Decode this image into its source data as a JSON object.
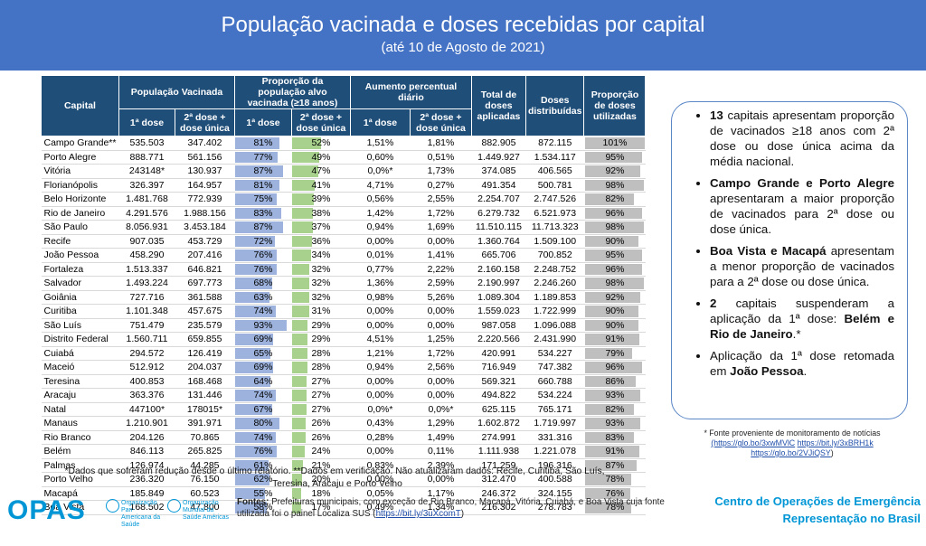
{
  "header": {
    "title": "População vacinada e doses recebidas por capital",
    "subtitle": "(até 10 de Agosto de 2021)"
  },
  "table": {
    "group_headers": {
      "capital": "Capital",
      "pop": "População Vacinada",
      "prop": "Proporção da população alvo vacinada (≥18 anos)",
      "aumento": "Aumento percentual diário",
      "total": "Total de doses aplicadas",
      "dist": "Doses distribuídas",
      "util": "Proporção de doses utilizadas"
    },
    "sub_headers": {
      "d1": "1ª dose",
      "d2": "2ª dose + dose única"
    },
    "rows": [
      {
        "capital": "Campo Grande**",
        "d1": "535.503",
        "d2": "347.402",
        "p1": "81%",
        "p2": "52%",
        "a1": "1,51%",
        "a2": "1,81%",
        "total": "882.905",
        "dist": "872.115",
        "util": "101%",
        "f1": 0.81,
        "f2": 0.52,
        "fu": 1.01
      },
      {
        "capital": "Porto Alegre",
        "d1": "888.771",
        "d2": "561.156",
        "p1": "77%",
        "p2": "49%",
        "a1": "0,60%",
        "a2": "0,51%",
        "total": "1.449.927",
        "dist": "1.534.117",
        "util": "95%",
        "f1": 0.77,
        "f2": 0.49,
        "fu": 0.95
      },
      {
        "capital": "Vitória",
        "d1": "243148*",
        "d2": "130.937",
        "p1": "87%",
        "p2": "47%",
        "a1": "0,0%*",
        "a2": "1,73%",
        "total": "374.085",
        "dist": "406.565",
        "util": "92%",
        "f1": 0.87,
        "f2": 0.47,
        "fu": 0.92
      },
      {
        "capital": "Florianópolis",
        "d1": "326.397",
        "d2": "164.957",
        "p1": "81%",
        "p2": "41%",
        "a1": "4,71%",
        "a2": "0,27%",
        "total": "491.354",
        "dist": "500.781",
        "util": "98%",
        "f1": 0.81,
        "f2": 0.41,
        "fu": 0.98
      },
      {
        "capital": "Belo Horizonte",
        "d1": "1.481.768",
        "d2": "772.939",
        "p1": "75%",
        "p2": "39%",
        "a1": "0,56%",
        "a2": "2,55%",
        "total": "2.254.707",
        "dist": "2.747.526",
        "util": "82%",
        "f1": 0.75,
        "f2": 0.39,
        "fu": 0.82
      },
      {
        "capital": "Rio de Janeiro",
        "d1": "4.291.576",
        "d2": "1.988.156",
        "p1": "83%",
        "p2": "38%",
        "a1": "1,42%",
        "a2": "1,72%",
        "total": "6.279.732",
        "dist": "6.521.973",
        "util": "96%",
        "f1": 0.83,
        "f2": 0.38,
        "fu": 0.96
      },
      {
        "capital": "São Paulo",
        "d1": "8.056.931",
        "d2": "3.453.184",
        "p1": "87%",
        "p2": "37%",
        "a1": "0,94%",
        "a2": "1,69%",
        "total": "11.510.115",
        "dist": "11.713.323",
        "util": "98%",
        "f1": 0.87,
        "f2": 0.37,
        "fu": 0.98
      },
      {
        "capital": "Recife",
        "d1": "907.035",
        "d2": "453.729",
        "p1": "72%",
        "p2": "36%",
        "a1": "0,00%",
        "a2": "0,00%",
        "total": "1.360.764",
        "dist": "1.509.100",
        "util": "90%",
        "f1": 0.72,
        "f2": 0.36,
        "fu": 0.9
      },
      {
        "capital": "João Pessoa",
        "d1": "458.290",
        "d2": "207.416",
        "p1": "76%",
        "p2": "34%",
        "a1": "0,01%",
        "a2": "1,41%",
        "total": "665.706",
        "dist": "700.852",
        "util": "95%",
        "f1": 0.76,
        "f2": 0.34,
        "fu": 0.95
      },
      {
        "capital": "Fortaleza",
        "d1": "1.513.337",
        "d2": "646.821",
        "p1": "76%",
        "p2": "32%",
        "a1": "0,77%",
        "a2": "2,22%",
        "total": "2.160.158",
        "dist": "2.248.752",
        "util": "96%",
        "f1": 0.76,
        "f2": 0.32,
        "fu": 0.96
      },
      {
        "capital": "Salvador",
        "d1": "1.493.224",
        "d2": "697.773",
        "p1": "68%",
        "p2": "32%",
        "a1": "1,36%",
        "a2": "2,59%",
        "total": "2.190.997",
        "dist": "2.246.260",
        "util": "98%",
        "f1": 0.68,
        "f2": 0.32,
        "fu": 0.98
      },
      {
        "capital": "Goiânia",
        "d1": "727.716",
        "d2": "361.588",
        "p1": "63%",
        "p2": "32%",
        "a1": "0,98%",
        "a2": "5,26%",
        "total": "1.089.304",
        "dist": "1.189.853",
        "util": "92%",
        "f1": 0.63,
        "f2": 0.32,
        "fu": 0.92
      },
      {
        "capital": "Curitiba",
        "d1": "1.101.348",
        "d2": "457.675",
        "p1": "74%",
        "p2": "31%",
        "a1": "0,00%",
        "a2": "0,00%",
        "total": "1.559.023",
        "dist": "1.722.999",
        "util": "90%",
        "f1": 0.74,
        "f2": 0.31,
        "fu": 0.9
      },
      {
        "capital": "São Luís",
        "d1": "751.479",
        "d2": "235.579",
        "p1": "93%",
        "p2": "29%",
        "a1": "0,00%",
        "a2": "0,00%",
        "total": "987.058",
        "dist": "1.096.088",
        "util": "90%",
        "f1": 0.93,
        "f2": 0.29,
        "fu": 0.9
      },
      {
        "capital": "Distrito Federal",
        "d1": "1.560.711",
        "d2": "659.855",
        "p1": "69%",
        "p2": "29%",
        "a1": "4,51%",
        "a2": "1,25%",
        "total": "2.220.566",
        "dist": "2.431.990",
        "util": "91%",
        "f1": 0.69,
        "f2": 0.29,
        "fu": 0.91
      },
      {
        "capital": "Cuiabá",
        "d1": "294.572",
        "d2": "126.419",
        "p1": "65%",
        "p2": "28%",
        "a1": "1,21%",
        "a2": "1,72%",
        "total": "420.991",
        "dist": "534.227",
        "util": "79%",
        "f1": 0.65,
        "f2": 0.28,
        "fu": 0.79
      },
      {
        "capital": "Maceió",
        "d1": "512.912",
        "d2": "204.037",
        "p1": "69%",
        "p2": "28%",
        "a1": "0,94%",
        "a2": "2,56%",
        "total": "716.949",
        "dist": "747.382",
        "util": "96%",
        "f1": 0.69,
        "f2": 0.28,
        "fu": 0.96
      },
      {
        "capital": "Teresina",
        "d1": "400.853",
        "d2": "168.468",
        "p1": "64%",
        "p2": "27%",
        "a1": "0,00%",
        "a2": "0,00%",
        "total": "569.321",
        "dist": "660.788",
        "util": "86%",
        "f1": 0.64,
        "f2": 0.27,
        "fu": 0.86
      },
      {
        "capital": "Aracaju",
        "d1": "363.376",
        "d2": "131.446",
        "p1": "74%",
        "p2": "27%",
        "a1": "0,00%",
        "a2": "0,00%",
        "total": "494.822",
        "dist": "534.224",
        "util": "93%",
        "f1": 0.74,
        "f2": 0.27,
        "fu": 0.93
      },
      {
        "capital": "Natal",
        "d1": "447100*",
        "d2": "178015*",
        "p1": "67%",
        "p2": "27%",
        "a1": "0,0%*",
        "a2": "0,0%*",
        "total": "625.115",
        "dist": "765.171",
        "util": "82%",
        "f1": 0.67,
        "f2": 0.27,
        "fu": 0.82
      },
      {
        "capital": "Manaus",
        "d1": "1.210.901",
        "d2": "391.971",
        "p1": "80%",
        "p2": "26%",
        "a1": "0,43%",
        "a2": "1,29%",
        "total": "1.602.872",
        "dist": "1.719.997",
        "util": "93%",
        "f1": 0.8,
        "f2": 0.26,
        "fu": 0.93
      },
      {
        "capital": "Rio Branco",
        "d1": "204.126",
        "d2": "70.865",
        "p1": "74%",
        "p2": "26%",
        "a1": "0,28%",
        "a2": "1,49%",
        "total": "274.991",
        "dist": "331.316",
        "util": "83%",
        "f1": 0.74,
        "f2": 0.26,
        "fu": 0.83
      },
      {
        "capital": "Belém",
        "d1": "846.113",
        "d2": "265.825",
        "p1": "76%",
        "p2": "24%",
        "a1": "0,00%",
        "a2": "0,11%",
        "total": "1.111.938",
        "dist": "1.221.078",
        "util": "91%",
        "f1": 0.76,
        "f2": 0.24,
        "fu": 0.91
      },
      {
        "capital": "Palmas",
        "d1": "126.974",
        "d2": "44.285",
        "p1": "61%",
        "p2": "21%",
        "a1": "0,83%",
        "a2": "2,39%",
        "total": "171.259",
        "dist": "196.316",
        "util": "87%",
        "f1": 0.61,
        "f2": 0.21,
        "fu": 0.87
      },
      {
        "capital": "Porto Velho",
        "d1": "236.320",
        "d2": "76.150",
        "p1": "62%",
        "p2": "20%",
        "a1": "0,00%",
        "a2": "0,00%",
        "total": "312.470",
        "dist": "400.588",
        "util": "78%",
        "f1": 0.62,
        "f2": 0.2,
        "fu": 0.78
      },
      {
        "capital": "Macapá",
        "d1": "185.849",
        "d2": "60.523",
        "p1": "55%",
        "p2": "18%",
        "a1": "0,05%",
        "a2": "1,17%",
        "total": "246.372",
        "dist": "324.155",
        "util": "76%",
        "f1": 0.55,
        "f2": 0.18,
        "fu": 0.76
      },
      {
        "capital": "Boa Vista",
        "d1": "168.502",
        "d2": "47.800",
        "p1": "58%",
        "p2": "17%",
        "a1": "0,49%",
        "a2": "1,34%",
        "total": "216.302",
        "dist": "278.783",
        "util": "78%",
        "f1": 0.58,
        "f2": 0.17,
        "fu": 0.78
      }
    ]
  },
  "sidebar": {
    "b1": {
      "strong": "13",
      "text": " capitais apresentam proporção de vacinados ≥18 anos com 2ª dose ou dose única acima da média nacional."
    },
    "b2": {
      "strong": "Campo Grande e Porto Alegre",
      "text": " apresentaram a maior proporção de vacinados para 2ª dose ou dose única."
    },
    "b3": {
      "strong": "Boa Vista e Macapá",
      "text": " apresentam a menor proporção de vacinados para a 2ª dose ou dose única."
    },
    "b4": {
      "strong": "2",
      "text": " capitais suspenderam a aplicação da 1ª dose: ",
      "strong2": "Belém e Rio de Janeiro",
      "tail": ".*"
    },
    "b5": {
      "text": "Aplicação da 1ª dose retomada em ",
      "strong": "João Pessoa",
      "tail": "."
    }
  },
  "fonte_note": {
    "text": "* Fonte proveniente de monitoramento de notícias",
    "link1": "(https://glo.bo/3xwMVlC",
    "link2": "https://bit.ly/3xBRH1k",
    "link3": "https://glo.bo/2VJiQSY",
    "close": ")"
  },
  "footnotes": {
    "line1": "*Dados que sofreram redução desde o último relatório. **Dados em verificação. Não atualizaram dados: Recife, Curitiba, São Luís,",
    "line2": "Teresina, Aracaju e Porto Velho"
  },
  "sources": {
    "label": "Fontes:",
    "text": " Prefeituras municipais, com exceção de Rio Branco, Macapá, Vitória, Cuiabá, e Boa Vista cuja fonte utilizada foi o painel Localiza SUS (",
    "link": "https://bit.ly/3uXcomT",
    "close": ")"
  },
  "footer": {
    "logo": "OPAS",
    "org1": "Organização Pan-Americana da Saúde",
    "org2": "Organização Mundial da Saúde",
    "org2b": "Américas",
    "centro1": "Centro de Operações de Emergência",
    "centro2": "Representação no Brasil"
  },
  "colors": {
    "banner": "#4472c4",
    "header": "#1f4e79",
    "bar1": "#9db3dd",
    "bar2": "#a9d18e",
    "bar3": "#bfbfbf",
    "brand": "#0096d6"
  }
}
